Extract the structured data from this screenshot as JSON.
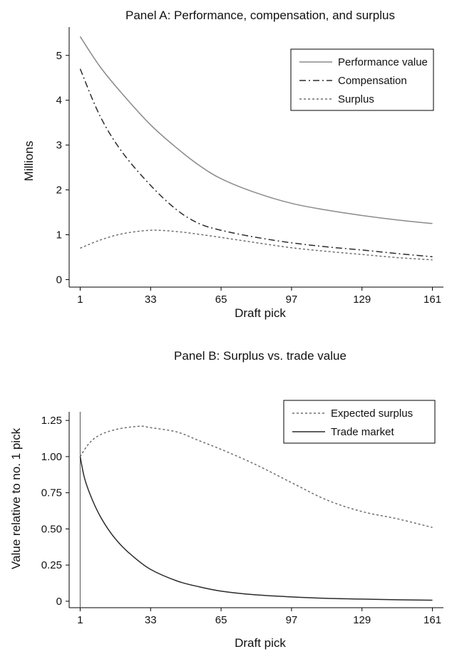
{
  "chart_data": [
    {
      "type": "line",
      "title": "Panel A: Performance, compensation, and surplus",
      "xlabel": "Draft pick",
      "ylabel": "Millions",
      "xticks": [
        1,
        33,
        65,
        97,
        129,
        161
      ],
      "yticks": [
        0,
        1,
        2,
        3,
        4,
        5
      ],
      "xlim": [
        -4,
        166
      ],
      "ylim": [
        -0.12,
        5.6
      ],
      "legend_position": "top-right",
      "series": [
        {
          "name": "Performance value",
          "style": "solid",
          "color": "#8a8a8a",
          "x": [
            1,
            10,
            20,
            33,
            45,
            55,
            65,
            80,
            97,
            113,
            129,
            145,
            161
          ],
          "y": [
            5.42,
            4.75,
            4.15,
            3.45,
            2.93,
            2.55,
            2.25,
            1.95,
            1.7,
            1.55,
            1.43,
            1.33,
            1.25
          ]
        },
        {
          "name": "Compensation",
          "style": "dashdot",
          "color": "#2b2b2b",
          "x": [
            1,
            10,
            20,
            33,
            45,
            55,
            65,
            80,
            97,
            113,
            129,
            145,
            161
          ],
          "y": [
            4.7,
            3.65,
            2.85,
            2.1,
            1.55,
            1.25,
            1.1,
            0.95,
            0.82,
            0.73,
            0.66,
            0.58,
            0.51
          ]
        },
        {
          "name": "Surplus",
          "style": "dotted",
          "color": "#6e6e6e",
          "x": [
            1,
            10,
            20,
            33,
            45,
            55,
            65,
            80,
            97,
            113,
            129,
            145,
            161
          ],
          "y": [
            0.7,
            0.88,
            1.02,
            1.1,
            1.07,
            1.01,
            0.94,
            0.83,
            0.71,
            0.63,
            0.56,
            0.49,
            0.44
          ]
        }
      ]
    },
    {
      "type": "line",
      "title": "Panel B: Surplus vs. trade value",
      "xlabel": "Draft pick",
      "ylabel": "Value relative to no. 1 pick",
      "xticks": [
        1,
        33,
        65,
        97,
        129,
        161
      ],
      "yticks": [
        "0",
        "0.25",
        "0.50",
        "0.75",
        "1.00",
        "1.25"
      ],
      "ytick_values": [
        0,
        0.25,
        0.5,
        0.75,
        1.0,
        1.25
      ],
      "xlim": [
        -4,
        166
      ],
      "ylim": [
        -0.03,
        1.3
      ],
      "legend_position": "top-right",
      "reference_line_x": 1,
      "series": [
        {
          "name": "Expected surplus",
          "style": "dotted",
          "color": "#6e6e6e",
          "x": [
            1,
            5,
            10,
            18,
            28,
            33,
            45,
            55,
            65,
            80,
            97,
            113,
            129,
            145,
            161
          ],
          "y": [
            1.0,
            1.09,
            1.15,
            1.19,
            1.21,
            1.2,
            1.17,
            1.11,
            1.05,
            0.95,
            0.82,
            0.7,
            0.62,
            0.57,
            0.51
          ]
        },
        {
          "name": "Trade market",
          "style": "solid",
          "color": "#2b2b2b",
          "x": [
            1,
            3,
            6,
            10,
            15,
            20,
            25,
            33,
            45,
            55,
            65,
            80,
            97,
            113,
            129,
            145,
            161
          ],
          "y": [
            1.0,
            0.85,
            0.72,
            0.59,
            0.47,
            0.38,
            0.31,
            0.22,
            0.14,
            0.1,
            0.07,
            0.045,
            0.03,
            0.02,
            0.015,
            0.01,
            0.007
          ]
        }
      ]
    }
  ]
}
